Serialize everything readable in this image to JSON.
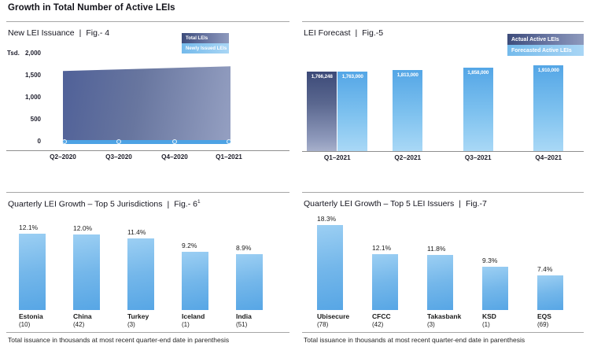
{
  "page": {
    "heading": "Growth in Total Number of Active LEIs",
    "separator": "|"
  },
  "colors": {
    "accent_dark_blue": "#3d4c7b",
    "accent_light_blue": "#57a6e5",
    "area_gradient_start": "#4f6098",
    "area_gradient_end": "#95a0c2",
    "axis_gray": "#8f8f8f",
    "text_dark": "#15151f"
  },
  "chart_data": [
    {
      "id": "fig4",
      "type": "area",
      "title": "New LEI Issuance",
      "fig_label": "Fig.- 4",
      "unit_label": "Tsd.",
      "legend": [
        "Total LEIs",
        "Newly Issued LEIs"
      ],
      "legend_position": "top-right",
      "grid": false,
      "x": [
        "Q2–2020",
        "Q3–2020",
        "Q4–2020",
        "Q1–2021"
      ],
      "ylim": [
        0,
        2000
      ],
      "y_ticks": [
        "2,000",
        "1,500",
        "1,000",
        "500",
        "0"
      ],
      "series": [
        {
          "name": "Total LEIs",
          "values": [
            1660,
            1695,
            1730,
            1766
          ]
        },
        {
          "name": "Newly Issued LEIs",
          "values": [
            45,
            45,
            45,
            45
          ]
        }
      ]
    },
    {
      "id": "fig5",
      "type": "bar",
      "title": "LEI Forecast",
      "fig_label": "Fig.-5",
      "legend": [
        "Actual Active LEIs",
        "Forecasted Active LEIs"
      ],
      "legend_position": "top-right",
      "x": [
        "Q1–2021",
        "Q2–2021",
        "Q3–2021",
        "Q4–2021"
      ],
      "bars": [
        {
          "x": "Q1–2021",
          "series": "Actual Active LEIs",
          "value": 1766248,
          "label": "1,766,248"
        },
        {
          "x": "Q1–2021",
          "series": "Forecasted Active LEIs",
          "value": 1763000,
          "label": "1,763,000"
        },
        {
          "x": "Q2–2021",
          "series": "Forecasted Active LEIs",
          "value": 1813000,
          "label": "1,813,000"
        },
        {
          "x": "Q3–2021",
          "series": "Forecasted Active LEIs",
          "value": 1858000,
          "label": "1,858,000"
        },
        {
          "x": "Q4–2021",
          "series": "Forecasted Active LEIs",
          "value": 1910000,
          "label": "1,910,000"
        }
      ]
    },
    {
      "id": "fig6",
      "type": "bar",
      "title": "Quarterly LEI Growth – Top 5 Jurisdictions",
      "fig_label": "Fig.- 6",
      "fig_superscript": "1",
      "bars": [
        {
          "name": "Estonia",
          "count": "(10)",
          "value": 12.1,
          "label": "12.1%"
        },
        {
          "name": "China",
          "count": "(42)",
          "value": 12.0,
          "label": "12.0%"
        },
        {
          "name": "Turkey",
          "count": "(3)",
          "value": 11.4,
          "label": "11.4%"
        },
        {
          "name": "Iceland",
          "count": "(1)",
          "value": 9.2,
          "label": "9.2%"
        },
        {
          "name": "India",
          "count": "(51)",
          "value": 8.9,
          "label": "8.9%"
        }
      ],
      "footnote": "Total issuance in thousands at most recent quarter-end date in parenthesis"
    },
    {
      "id": "fig7",
      "type": "bar",
      "title": "Quarterly LEI Growth – Top 5 LEI Issuers",
      "fig_label": "Fig.-7",
      "bars": [
        {
          "name": "Ubisecure",
          "count": "(78)",
          "value": 18.3,
          "label": "18.3%"
        },
        {
          "name": "CFCC",
          "count": "(42)",
          "value": 12.1,
          "label": "12.1%"
        },
        {
          "name": "Takasbank",
          "count": "(3)",
          "value": 11.8,
          "label": "11.8%"
        },
        {
          "name": "KSD",
          "count": "(1)",
          "value": 9.3,
          "label": "9.3%"
        },
        {
          "name": "EQS",
          "count": "(69)",
          "value": 7.4,
          "label": "7.4%"
        }
      ],
      "footnote": "Total issuance in thousands at most recent quarter-end date in parenthesis"
    }
  ]
}
